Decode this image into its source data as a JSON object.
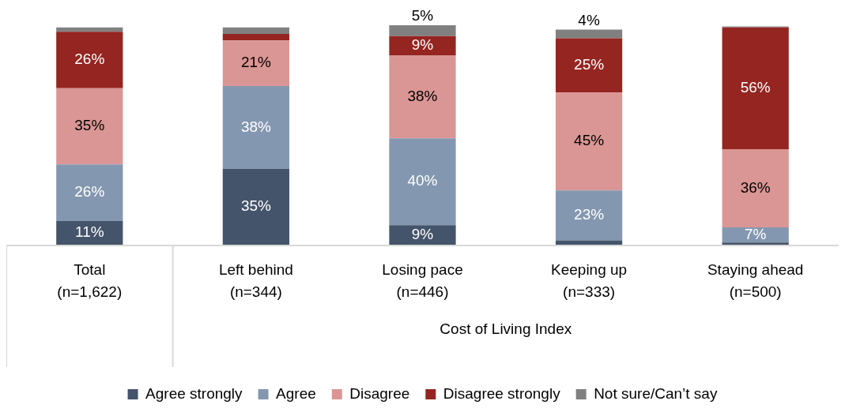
{
  "chart_data": {
    "type": "bar",
    "stacked": true,
    "categories": [
      "Total\n(n=1,622)",
      "Left behind\n(n=344)",
      "Losing pace\n(n=446)",
      "Keeping up\n(n=333)",
      "Staying ahead\n(n=500)"
    ],
    "series": [
      {
        "name": "Agree strongly",
        "color": "#44546a",
        "values": [
          11,
          35,
          9,
          2,
          1
        ],
        "value_labels": [
          "11%",
          "35%",
          "9%",
          null,
          null
        ]
      },
      {
        "name": "Agree",
        "color": "#8497b0",
        "values": [
          26,
          38,
          40,
          23,
          7
        ],
        "value_labels": [
          "26%",
          "38%",
          "40%",
          "23%",
          "7%"
        ]
      },
      {
        "name": "Disagree",
        "color": "#da9694",
        "values": [
          35,
          21,
          38,
          45,
          36
        ],
        "value_labels": [
          "35%",
          "21%",
          "38%",
          "45%",
          "36%"
        ]
      },
      {
        "name": "Disagree strongly",
        "color": "#952520",
        "values": [
          26,
          3,
          9,
          25,
          56
        ],
        "value_labels": [
          "26%",
          null,
          "9%",
          "25%",
          "56%"
        ]
      },
      {
        "name": "Not sure/Can’t say",
        "color": "#808080",
        "values": [
          2,
          3,
          5,
          4,
          0.5
        ],
        "value_labels": [
          null,
          null,
          "5%",
          "4%",
          null
        ]
      }
    ],
    "annotations": [
      "Cost of Living Index"
    ],
    "legend": "bottom",
    "grid": false
  }
}
